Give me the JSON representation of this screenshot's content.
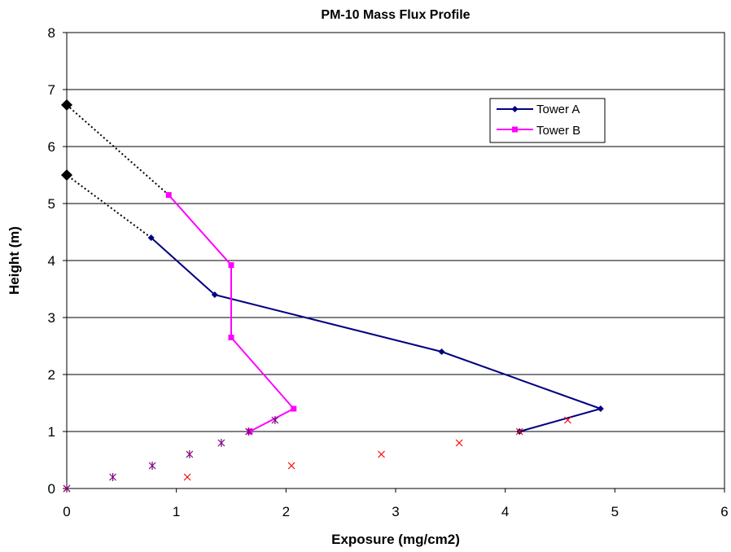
{
  "chart_data": {
    "type": "line",
    "title": "PM-10 Mass Flux Profile",
    "xlabel": "Exposure (mg/cm2)",
    "ylabel": "Height (m)",
    "xlim": [
      0,
      6
    ],
    "ylim": [
      0,
      8
    ],
    "x_ticks": [
      "0",
      "1",
      "2",
      "3",
      "4",
      "5",
      "6"
    ],
    "y_ticks": [
      "0",
      "1",
      "2",
      "3",
      "4",
      "5",
      "6",
      "7",
      "8"
    ],
    "grid": "horizontal major gridlines",
    "legend_position": "upper-right",
    "series": [
      {
        "name": "Tower A",
        "color": "#000080",
        "marker": "diamond",
        "points": [
          [
            0.77,
            4.4
          ],
          [
            1.35,
            3.4
          ],
          [
            3.42,
            2.4
          ],
          [
            4.87,
            1.4
          ],
          [
            4.13,
            1.0
          ]
        ]
      },
      {
        "name": "Tower B",
        "color": "#FF00FF",
        "marker": "square",
        "points": [
          [
            0.93,
            5.15
          ],
          [
            1.5,
            3.92
          ],
          [
            1.5,
            2.65
          ],
          [
            2.07,
            1.4
          ],
          [
            1.67,
            1.0
          ]
        ]
      }
    ],
    "extrapolations": [
      {
        "from": [
          0.77,
          4.4
        ],
        "to": [
          0.0,
          5.5
        ],
        "style": "dotted",
        "marker": "large diamond"
      },
      {
        "from": [
          0.93,
          5.15
        ],
        "to": [
          0.0,
          6.73
        ],
        "style": "dotted",
        "marker": "large diamond"
      }
    ],
    "scatter_sets": [
      {
        "color": "#FF0000",
        "marker": "x",
        "points": [
          [
            0,
            0
          ],
          [
            1.1,
            0.2
          ],
          [
            2.05,
            0.4
          ],
          [
            2.87,
            0.6
          ],
          [
            3.58,
            0.8
          ],
          [
            4.13,
            1.0
          ],
          [
            4.57,
            1.2
          ]
        ]
      },
      {
        "color": "#800080",
        "marker": "asterisk",
        "points": [
          [
            0,
            0
          ],
          [
            0.42,
            0.2
          ],
          [
            0.78,
            0.4
          ],
          [
            1.12,
            0.6
          ],
          [
            1.41,
            0.8
          ],
          [
            1.66,
            1.0
          ],
          [
            1.9,
            1.2
          ]
        ]
      }
    ]
  }
}
